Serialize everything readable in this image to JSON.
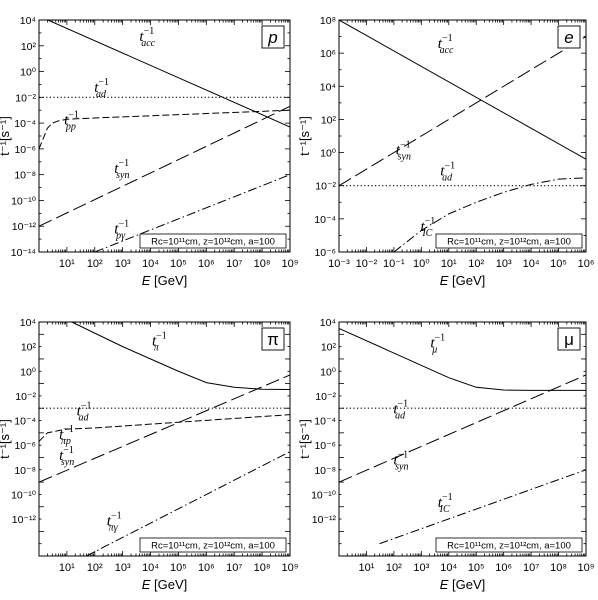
{
  "figure": {
    "xlabel_italic": "E",
    "xlabel_unit": " [GeV]",
    "ylabel": "t⁻¹[s⁻¹]",
    "info_box_text": "Rc=10¹¹cm, z=10¹²cm, a=100"
  },
  "chart_data": [
    {
      "type": "line",
      "panel_label": "p",
      "xlabel": "E [GeV]",
      "ylabel": "t^-1 [s^-1]",
      "x_scale": "log",
      "y_scale": "log",
      "xlim": [
        1,
        1000000000
      ],
      "ylim": [
        1e-14,
        10000
      ],
      "x_tick_labels": [
        "10¹",
        "10²",
        "10³",
        "10⁴",
        "10⁵",
        "10⁶",
        "10⁷",
        "10⁸",
        "10⁹"
      ],
      "y_tick_labels": [
        "10⁻¹⁴",
        "10⁻¹²",
        "10⁻¹⁰",
        "10⁻⁸",
        "10⁻⁶",
        "10⁻⁴",
        "10⁻²",
        "10⁰",
        "10²",
        "10⁴"
      ],
      "annotation": "Rc=10^11cm, z=10^12cm, a=100",
      "series": [
        {
          "name": "t_acc^-1",
          "style": "solid",
          "x": [
            1,
            1000000000
          ],
          "y": [
            20000,
            5e-05
          ]
        },
        {
          "name": "t_ad^-1",
          "style": "dotted",
          "x": [
            1,
            1000000000
          ],
          "y": [
            0.01,
            0.01
          ]
        },
        {
          "name": "t_pp^-1",
          "style": "short-dash",
          "x": [
            1,
            2,
            3,
            5,
            10,
            100,
            1000000000
          ],
          "y": [
            1e-06,
            4e-05,
            0.0001,
            0.00015,
            0.0002,
            0.00025,
            0.001
          ]
        },
        {
          "name": "t_syn^-1",
          "style": "long-dash",
          "x": [
            1,
            1000000000
          ],
          "y": [
            1e-12,
            0.002
          ]
        },
        {
          "name": "t_pγ^-1",
          "style": "dash-dot",
          "x": [
            100,
            1000000000
          ],
          "y": [
            1e-14,
            1e-08
          ]
        }
      ],
      "curve_labels": [
        {
          "base": "t",
          "sub": "acc"
        },
        {
          "base": "t",
          "sub": "ad"
        },
        {
          "base": "t",
          "sub": "pp"
        },
        {
          "base": "t",
          "sub": "syn"
        },
        {
          "base": "t",
          "sub": "pγ"
        }
      ]
    },
    {
      "type": "line",
      "panel_label": "e",
      "xlabel": "E [GeV]",
      "ylabel": "t^-1 [s^-1]",
      "x_scale": "log",
      "y_scale": "log",
      "xlim": [
        0.001,
        1000000
      ],
      "ylim": [
        1e-06,
        100000000
      ],
      "x_tick_labels": [
        "10⁻³",
        "10⁻²",
        "10⁻¹",
        "10⁰",
        "10¹",
        "10²",
        "10³",
        "10⁴",
        "10⁵",
        "10⁶"
      ],
      "y_tick_labels": [
        "10⁻⁶",
        "10⁻⁴",
        "10⁻²",
        "10⁰",
        "10²",
        "10⁴",
        "10⁶",
        "10⁸"
      ],
      "annotation": "Rc=10^11cm, z=10^12cm, a=100",
      "series": [
        {
          "name": "t_acc^-1",
          "style": "solid",
          "x": [
            0.001,
            1000000
          ],
          "y": [
            100000000,
            0.4
          ]
        },
        {
          "name": "t_ad^-1",
          "style": "dotted",
          "x": [
            0.001,
            1000000
          ],
          "y": [
            0.01,
            0.01
          ]
        },
        {
          "name": "t_syn^-1",
          "style": "long-dash",
          "x": [
            0.001,
            1000000
          ],
          "y": [
            0.01,
            10000000
          ]
        },
        {
          "name": "t_IC^-1",
          "style": "dash-dot",
          "x": [
            0.1,
            1,
            10,
            100,
            1000,
            10000,
            100000,
            1000000
          ],
          "y": [
            1e-06,
            2e-05,
            0.0002,
            0.001,
            0.004,
            0.012,
            0.025,
            0.03
          ]
        }
      ],
      "curve_labels": [
        {
          "base": "t",
          "sub": "acc"
        },
        {
          "base": "t",
          "sub": "syn"
        },
        {
          "base": "t",
          "sub": "ad"
        },
        {
          "base": "t",
          "sub": "IC"
        }
      ]
    },
    {
      "type": "line",
      "panel_label": "π",
      "xlabel": "E [GeV]",
      "ylabel": "t^-1 [s^-1]",
      "x_scale": "log",
      "y_scale": "log",
      "xlim": [
        1,
        1000000000
      ],
      "ylim": [
        1e-14,
        100000
      ],
      "x_tick_labels": [
        "10¹",
        "10²",
        "10³",
        "10⁴",
        "10⁵",
        "10⁶",
        "10⁷",
        "10⁸",
        "10⁹"
      ],
      "y_tick_labels": [
        "10⁻¹²",
        "10⁻¹⁰",
        "10⁻⁸",
        "10⁻⁶",
        "10⁻⁴",
        "10⁻²",
        "10⁰",
        "10²",
        "10⁴"
      ],
      "annotation": "Rc=10^11cm, z=10^12cm, a=100",
      "series": [
        {
          "name": "t_π^-1",
          "style": "solid",
          "x": [
            15,
            1000,
            100000,
            1000000,
            10000000,
            100000000,
            1000000000
          ],
          "y": [
            100000,
            1000,
            10,
            1.2,
            0.5,
            0.35,
            0.33
          ]
        },
        {
          "name": "t_ad^-1",
          "style": "dotted",
          "x": [
            1,
            1000000000
          ],
          "y": [
            0.01,
            0.01
          ]
        },
        {
          "name": "t_πp^-1",
          "style": "short-dash",
          "x": [
            1,
            2,
            5,
            10,
            100,
            1000000000
          ],
          "y": [
            2e-05,
            0.0001,
            0.00015,
            0.0002,
            0.00025,
            0.003
          ]
        },
        {
          "name": "t_syn^-1",
          "style": "long-dash",
          "x": [
            1,
            1000000000
          ],
          "y": [
            1e-08,
            5
          ]
        },
        {
          "name": "t_πγ^-1",
          "style": "dash-dot",
          "x": [
            50,
            1000000000
          ],
          "y": [
            1e-14,
            3e-06
          ]
        }
      ],
      "curve_labels": [
        {
          "base": "t",
          "sub": "π"
        },
        {
          "base": "t",
          "sub": "ad"
        },
        {
          "base": "t",
          "sub": "πp"
        },
        {
          "base": "t",
          "sub": "syn"
        },
        {
          "base": "t",
          "sub": "πγ"
        }
      ]
    },
    {
      "type": "line",
      "panel_label": "μ",
      "xlabel": "E [GeV]",
      "ylabel": "t^-1 [s^-1]",
      "x_scale": "log",
      "y_scale": "log",
      "xlim": [
        1,
        1000000000
      ],
      "ylim": [
        1e-14,
        100000
      ],
      "x_tick_labels": [
        "10¹",
        "10²",
        "10³",
        "10⁴",
        "10⁵",
        "10⁶",
        "10⁷",
        "10⁸",
        "10⁹"
      ],
      "y_tick_labels": [
        "10⁻¹²",
        "10⁻¹⁰",
        "10⁻⁸",
        "10⁻⁶",
        "10⁻⁴",
        "10⁻²",
        "10⁰",
        "10²",
        "10⁴"
      ],
      "annotation": "Rc=10^11cm, z=10^12cm, a=100",
      "series": [
        {
          "name": "t_μ^-1",
          "style": "solid",
          "x": [
            1,
            100,
            10000,
            100000,
            1000000,
            10000000,
            1000000000
          ],
          "y": [
            30000,
            300,
            3,
            0.5,
            0.3,
            0.28,
            0.28
          ]
        },
        {
          "name": "t_ad^-1",
          "style": "dotted",
          "x": [
            1,
            1000000000
          ],
          "y": [
            0.01,
            0.01
          ]
        },
        {
          "name": "t_syn^-1",
          "style": "long-dash",
          "x": [
            1,
            1000000000
          ],
          "y": [
            1e-08,
            5
          ]
        },
        {
          "name": "t_IC^-1",
          "style": "dash-dot",
          "x": [
            30,
            1000000000
          ],
          "y": [
            1e-13,
            1e-07
          ]
        }
      ],
      "curve_labels": [
        {
          "base": "t",
          "sub": "μ"
        },
        {
          "base": "t",
          "sub": "ad"
        },
        {
          "base": "t",
          "sub": "syn"
        },
        {
          "base": "t",
          "sub": "IC"
        }
      ]
    }
  ]
}
